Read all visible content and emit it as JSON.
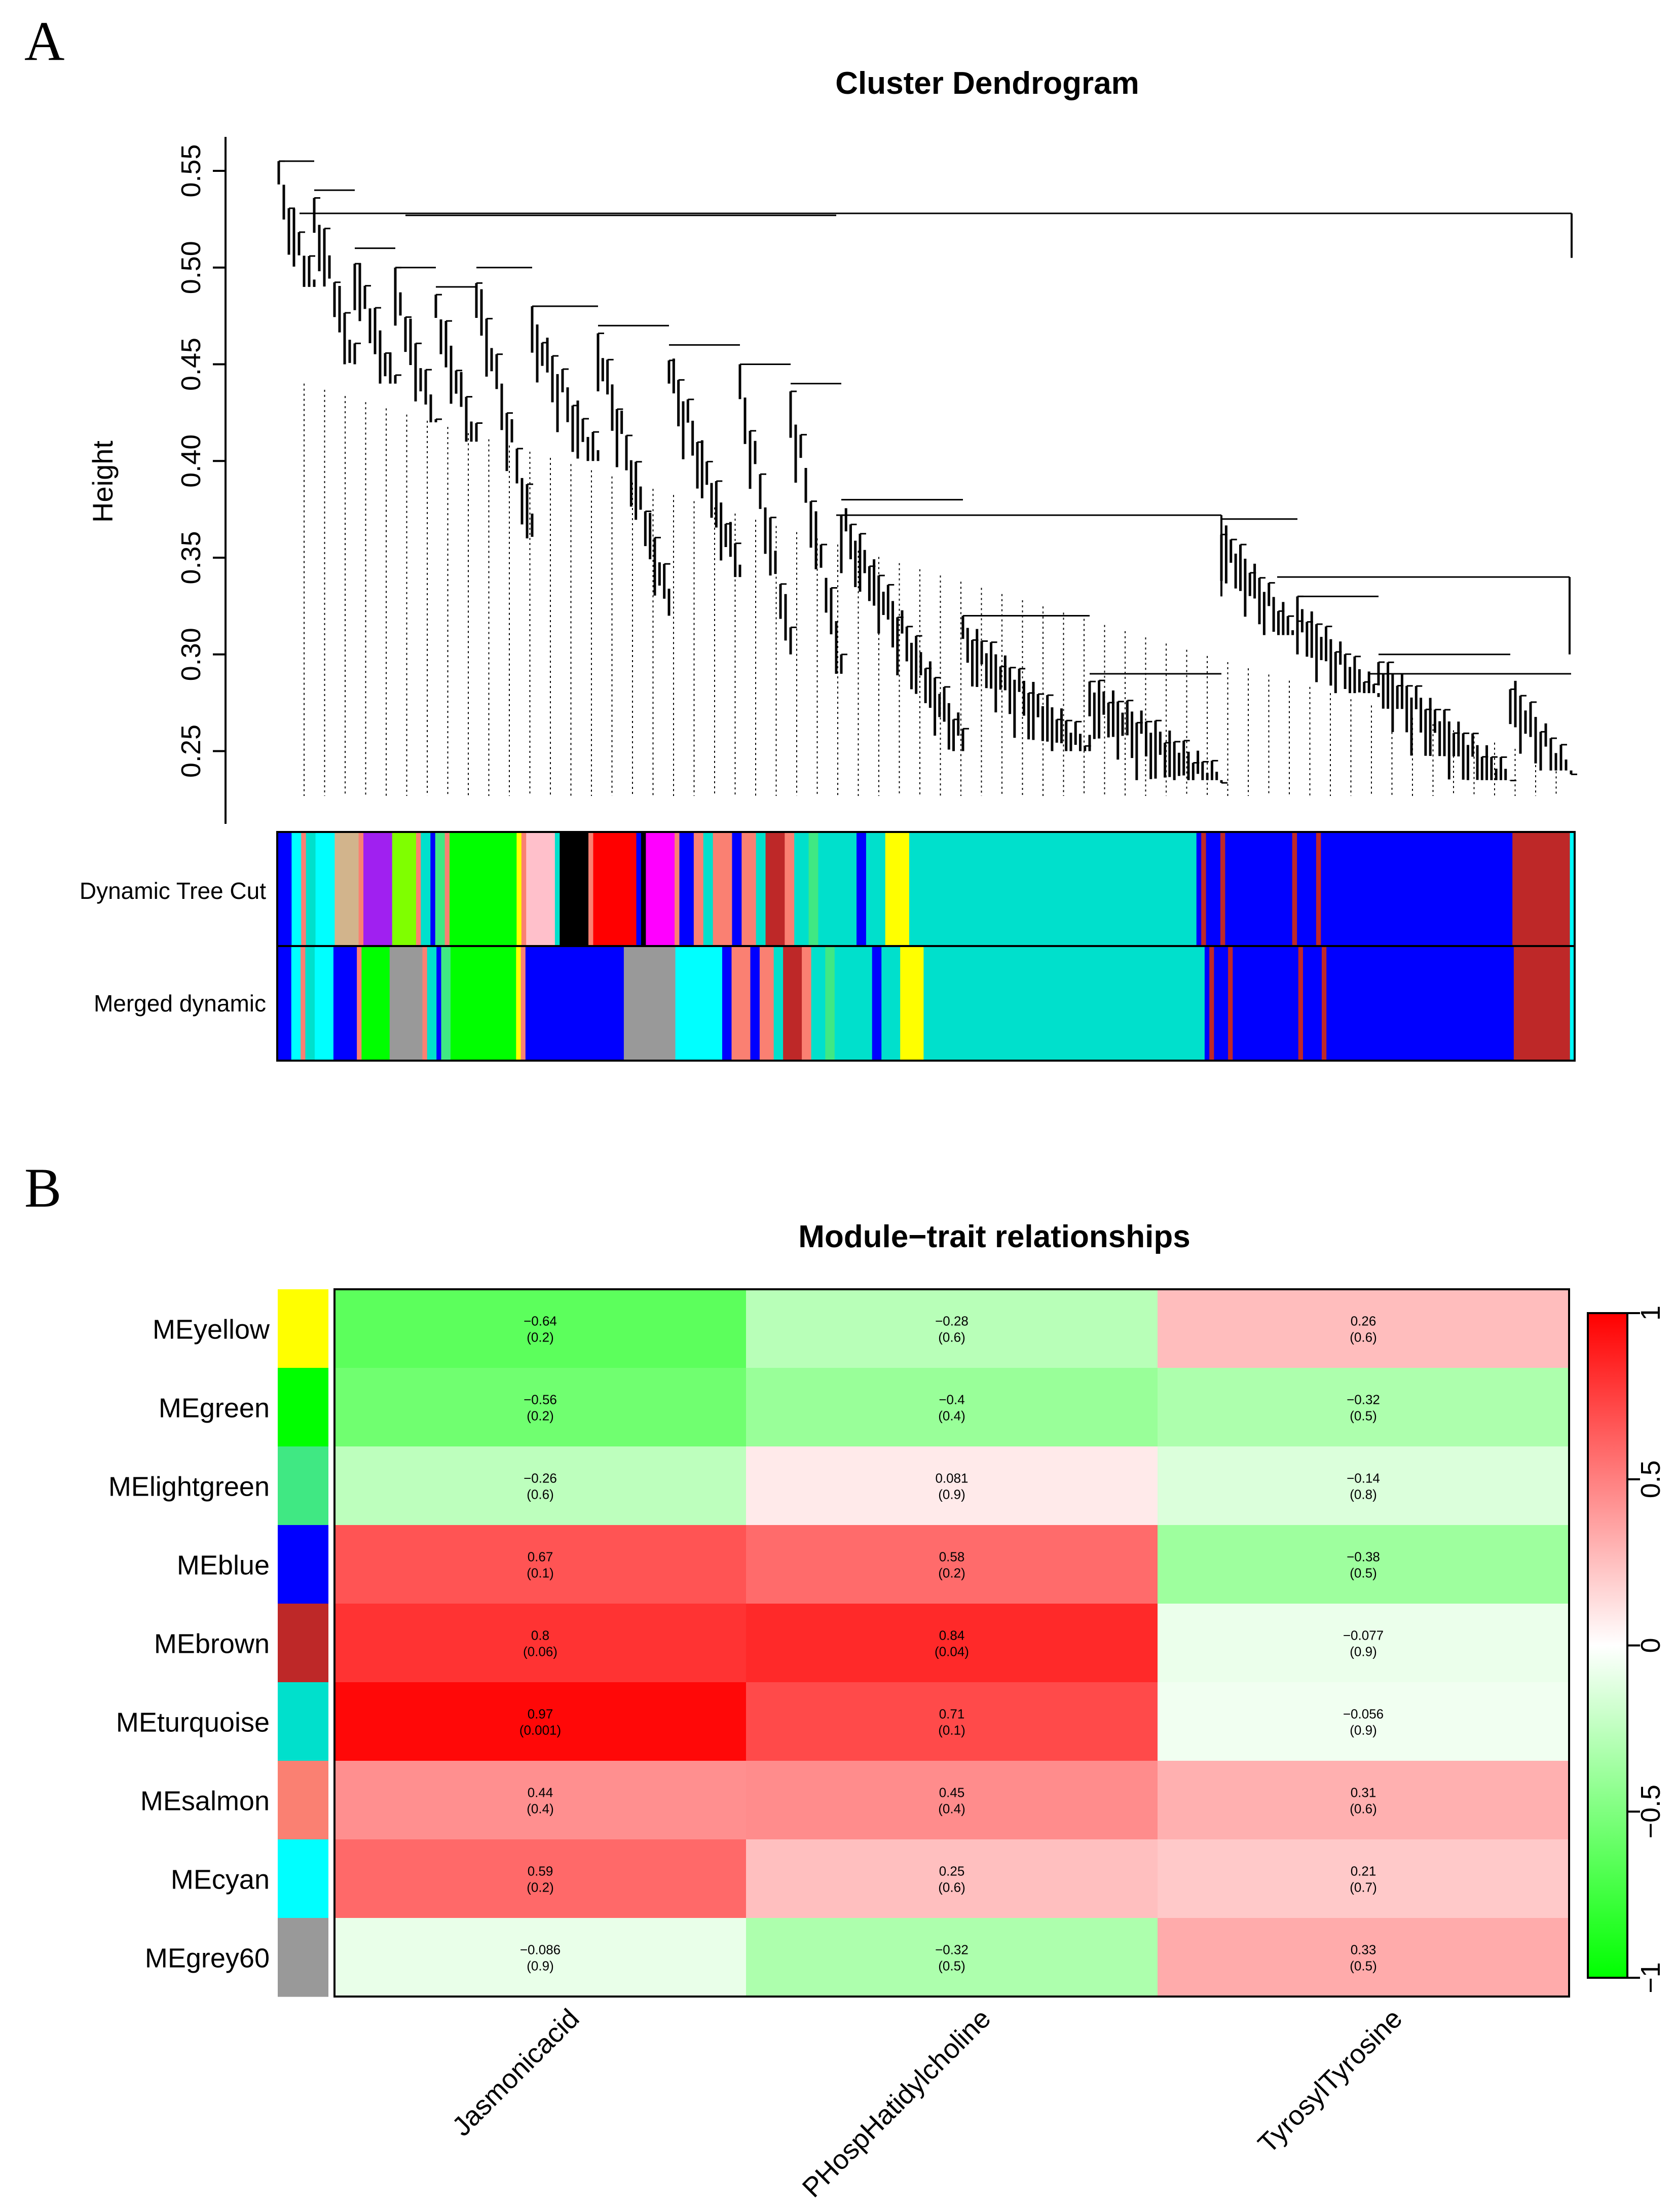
{
  "panels": {
    "a": "A",
    "b": "B"
  },
  "colors": {
    "ink": "#000000",
    "yellow": "#ffff00",
    "green": "#00ff00",
    "lightgreen": "#40e883",
    "blue": "#0000ff",
    "brown": "#be2828",
    "turquoise": "#00e0cc",
    "salmon": "#fa8072",
    "cyan": "#00ffff",
    "grey60": "#999999",
    "pink": "#ffc0cb",
    "black": "#000000",
    "red": "#ff0000",
    "magenta": "#ff00ff",
    "purple": "#a020f0",
    "greenyellow": "#7fff00",
    "tan": "#d2b48c"
  },
  "chart_data": [
    {
      "type": "dendrogram",
      "title": "Cluster Dendrogram",
      "ylabel": "Height",
      "ylim": [
        0.21,
        0.57
      ],
      "yticks": [
        0.25,
        0.3,
        0.35,
        0.4,
        0.45,
        0.5,
        0.55
      ],
      "ytick_labels": [
        "0.25",
        "0.30",
        "0.35",
        "0.40",
        "0.45",
        "0.50",
        "0.55"
      ],
      "color_rows": [
        "Dynamic Tree Cut",
        "Merged dynamic"
      ],
      "dynamic_tree_cut": [
        {
          "c": "blue",
          "w": 3
        },
        {
          "c": "cyan",
          "w": 2
        },
        {
          "c": "salmon",
          "w": 1
        },
        {
          "c": "turquoise",
          "w": 2
        },
        {
          "c": "cyan",
          "w": 4
        },
        {
          "c": "tan",
          "w": 5
        },
        {
          "c": "salmon",
          "w": 1
        },
        {
          "c": "purple",
          "w": 6
        },
        {
          "c": "greenyellow",
          "w": 5
        },
        {
          "c": "salmon",
          "w": 1
        },
        {
          "c": "turquoise",
          "w": 2
        },
        {
          "c": "blue",
          "w": 1
        },
        {
          "c": "lightgreen",
          "w": 2
        },
        {
          "c": "salmon",
          "w": 1
        },
        {
          "c": "green",
          "w": 14
        },
        {
          "c": "yellow",
          "w": 1
        },
        {
          "c": "salmon",
          "w": 1
        },
        {
          "c": "pink",
          "w": 6
        },
        {
          "c": "turquoise",
          "w": 1
        },
        {
          "c": "black",
          "w": 6
        },
        {
          "c": "salmon",
          "w": 1
        },
        {
          "c": "red",
          "w": 9
        },
        {
          "c": "blue",
          "w": 1
        },
        {
          "c": "black",
          "w": 1
        },
        {
          "c": "magenta",
          "w": 6
        },
        {
          "c": "salmon",
          "w": 1
        },
        {
          "c": "blue",
          "w": 3
        },
        {
          "c": "salmon",
          "w": 2
        },
        {
          "c": "turquoise",
          "w": 2
        },
        {
          "c": "salmon",
          "w": 4
        },
        {
          "c": "blue",
          "w": 2
        },
        {
          "c": "salmon",
          "w": 3
        },
        {
          "c": "turquoise",
          "w": 2
        },
        {
          "c": "brown",
          "w": 4
        },
        {
          "c": "salmon",
          "w": 2
        },
        {
          "c": "turquoise",
          "w": 3
        },
        {
          "c": "lightgreen",
          "w": 2
        },
        {
          "c": "turquoise",
          "w": 8
        },
        {
          "c": "blue",
          "w": 2
        },
        {
          "c": "turquoise",
          "w": 4
        },
        {
          "c": "yellow",
          "w": 5
        },
        {
          "c": "turquoise",
          "w": 60
        },
        {
          "c": "blue",
          "w": 1
        },
        {
          "c": "brown",
          "w": 1
        },
        {
          "c": "blue",
          "w": 3
        },
        {
          "c": "brown",
          "w": 1
        },
        {
          "c": "blue",
          "w": 14
        },
        {
          "c": "brown",
          "w": 1
        },
        {
          "c": "blue",
          "w": 4
        },
        {
          "c": "brown",
          "w": 1
        },
        {
          "c": "blue",
          "w": 40
        },
        {
          "c": "brown",
          "w": 12
        },
        {
          "c": "cyan",
          "w": 1
        }
      ],
      "merged_dynamic": [
        {
          "c": "blue",
          "w": 3
        },
        {
          "c": "cyan",
          "w": 2
        },
        {
          "c": "salmon",
          "w": 1
        },
        {
          "c": "turquoise",
          "w": 2
        },
        {
          "c": "cyan",
          "w": 4
        },
        {
          "c": "blue",
          "w": 5
        },
        {
          "c": "salmon",
          "w": 1
        },
        {
          "c": "green",
          "w": 6
        },
        {
          "c": "grey60",
          "w": 7
        },
        {
          "c": "salmon",
          "w": 1
        },
        {
          "c": "turquoise",
          "w": 2
        },
        {
          "c": "blue",
          "w": 1
        },
        {
          "c": "lightgreen",
          "w": 2
        },
        {
          "c": "green",
          "w": 14
        },
        {
          "c": "yellow",
          "w": 1
        },
        {
          "c": "salmon",
          "w": 1
        },
        {
          "c": "blue",
          "w": 21
        },
        {
          "c": "grey60",
          "w": 11
        },
        {
          "c": "cyan",
          "w": 10
        },
        {
          "c": "blue",
          "w": 2
        },
        {
          "c": "salmon",
          "w": 4
        },
        {
          "c": "blue",
          "w": 2
        },
        {
          "c": "salmon",
          "w": 3
        },
        {
          "c": "turquoise",
          "w": 2
        },
        {
          "c": "brown",
          "w": 4
        },
        {
          "c": "salmon",
          "w": 2
        },
        {
          "c": "turquoise",
          "w": 3
        },
        {
          "c": "lightgreen",
          "w": 2
        },
        {
          "c": "turquoise",
          "w": 8
        },
        {
          "c": "blue",
          "w": 2
        },
        {
          "c": "turquoise",
          "w": 4
        },
        {
          "c": "yellow",
          "w": 5
        },
        {
          "c": "turquoise",
          "w": 60
        },
        {
          "c": "blue",
          "w": 1
        },
        {
          "c": "brown",
          "w": 1
        },
        {
          "c": "blue",
          "w": 3
        },
        {
          "c": "brown",
          "w": 1
        },
        {
          "c": "blue",
          "w": 14
        },
        {
          "c": "brown",
          "w": 1
        },
        {
          "c": "blue",
          "w": 4
        },
        {
          "c": "brown",
          "w": 1
        },
        {
          "c": "blue",
          "w": 40
        },
        {
          "c": "brown",
          "w": 12
        },
        {
          "c": "cyan",
          "w": 1
        }
      ]
    },
    {
      "type": "heatmap",
      "title": "Module−trait relationships",
      "rows": [
        "MEyellow",
        "MEgreen",
        "MElightgreen",
        "MEblue",
        "MEbrown",
        "MEturquoise",
        "MEsalmon",
        "MEcyan",
        "MEgrey60"
      ],
      "row_colors": [
        "yellow",
        "green",
        "lightgreen",
        "blue",
        "brown",
        "turquoise",
        "salmon",
        "cyan",
        "grey60"
      ],
      "columns": [
        "Jasmonicacid",
        "PHospHatidylcholine",
        "TyrosylTyrosine"
      ],
      "values": [
        [
          -0.64,
          -0.28,
          0.26
        ],
        [
          -0.56,
          -0.4,
          -0.32
        ],
        [
          -0.26,
          0.081,
          -0.14
        ],
        [
          0.67,
          0.58,
          -0.38
        ],
        [
          0.8,
          0.84,
          -0.077
        ],
        [
          0.97,
          0.71,
          -0.056
        ],
        [
          0.44,
          0.45,
          0.31
        ],
        [
          0.59,
          0.25,
          0.21
        ],
        [
          -0.086,
          -0.32,
          0.33
        ]
      ],
      "value_labels": [
        [
          "−0.64",
          "−0.28",
          "0.26"
        ],
        [
          "−0.56",
          "−0.4",
          "−0.32"
        ],
        [
          "−0.26",
          "0.081",
          "−0.14"
        ],
        [
          "0.67",
          "0.58",
          "−0.38"
        ],
        [
          "0.8",
          "0.84",
          "−0.077"
        ],
        [
          "0.97",
          "0.71",
          "−0.056"
        ],
        [
          "0.44",
          "0.45",
          "0.31"
        ],
        [
          "0.59",
          "0.25",
          "0.21"
        ],
        [
          "−0.086",
          "−0.32",
          "0.33"
        ]
      ],
      "p_labels": [
        [
          "(0.2)",
          "(0.6)",
          "(0.6)"
        ],
        [
          "(0.2)",
          "(0.4)",
          "(0.5)"
        ],
        [
          "(0.6)",
          "(0.9)",
          "(0.8)"
        ],
        [
          "(0.1)",
          "(0.2)",
          "(0.5)"
        ],
        [
          "(0.06)",
          "(0.04)",
          "(0.9)"
        ],
        [
          "(0.001)",
          "(0.1)",
          "(0.9)"
        ],
        [
          "(0.4)",
          "(0.4)",
          "(0.6)"
        ],
        [
          "(0.2)",
          "(0.6)",
          "(0.7)"
        ],
        [
          "(0.9)",
          "(0.5)",
          "(0.5)"
        ]
      ],
      "color_scale": {
        "min": -1,
        "max": 1,
        "low": "#00ff00",
        "mid": "#ffffff",
        "high": "#ff0000"
      },
      "colorbar_ticks": [
        1,
        0.5,
        0,
        -0.5,
        -1
      ],
      "colorbar_labels": [
        "1",
        "0.5",
        "0",
        "−0.5",
        "−1"
      ]
    }
  ]
}
